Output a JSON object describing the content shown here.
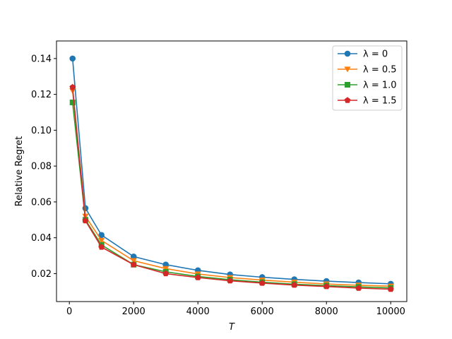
{
  "chart_data": {
    "type": "line",
    "xlabel": "T",
    "ylabel": "Relative Regret",
    "xlim": [
      -400,
      10500
    ],
    "ylim": [
      0.0044,
      0.1498
    ],
    "xticks": [
      0,
      2000,
      4000,
      6000,
      8000,
      10000
    ],
    "yticks": [
      0.02,
      0.04,
      0.06,
      0.08,
      0.1,
      0.12,
      0.14
    ],
    "ytick_labels": [
      "0.02",
      "0.04",
      "0.06",
      "0.08",
      "0.10",
      "0.12",
      "0.14"
    ],
    "xtick_labels": [
      "0",
      "2000",
      "4000",
      "6000",
      "8000",
      "10000"
    ],
    "x": [
      100,
      500,
      1000,
      2000,
      3000,
      4000,
      5000,
      6000,
      7000,
      8000,
      9000,
      10000
    ],
    "legend_position": "top-right",
    "grid": false,
    "series": [
      {
        "name": "λ = 0",
        "color": "#1f77b4",
        "marker": "circle",
        "values": [
          0.14,
          0.0565,
          0.0415,
          0.0295,
          0.025,
          0.0218,
          0.0195,
          0.018,
          0.0168,
          0.0158,
          0.015,
          0.0143
        ]
      },
      {
        "name": "λ = 0.5",
        "color": "#ff7f0e",
        "marker": "triangle-down",
        "values": [
          0.122,
          0.052,
          0.0385,
          0.0272,
          0.0228,
          0.0198,
          0.0178,
          0.0164,
          0.0152,
          0.0142,
          0.0135,
          0.013
        ]
      },
      {
        "name": "λ = 1.0",
        "color": "#2ca02c",
        "marker": "square",
        "values": [
          0.1155,
          0.05,
          0.036,
          0.025,
          0.021,
          0.0184,
          0.0166,
          0.0152,
          0.0141,
          0.0133,
          0.0126,
          0.012
        ]
      },
      {
        "name": "λ = 1.5",
        "color": "#d62728",
        "marker": "pentagon",
        "values": [
          0.124,
          0.0495,
          0.0348,
          0.025,
          0.02,
          0.0178,
          0.016,
          0.0147,
          0.0136,
          0.0128,
          0.0119,
          0.0113
        ]
      }
    ]
  }
}
